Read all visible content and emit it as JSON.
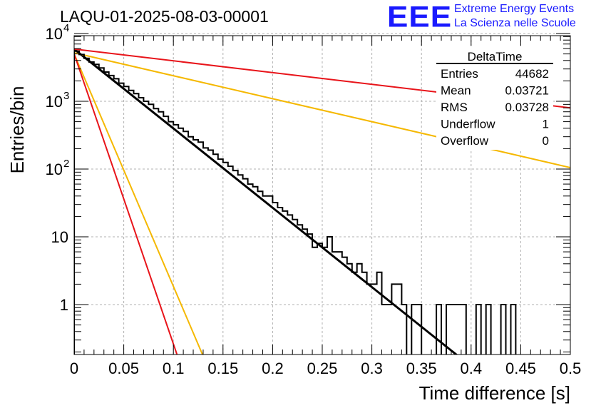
{
  "header": {
    "title": "LAQU-01-2025-08-03-00001",
    "logo_text": "EEE",
    "logo_line1": "Extreme Energy Events",
    "logo_line2": "La Scienza nelle Scuole"
  },
  "colors": {
    "histogram": "#000000",
    "fit": "#000000",
    "red_line": "#e8141a",
    "orange_line": "#f5b800",
    "logo": "#1a1aff",
    "grid": "#b0b0b0"
  },
  "chart_data": {
    "type": "line",
    "title": "LAQU-01-2025-08-03-00001",
    "xlabel": "Time difference [s]",
    "ylabel": "Entries/bin",
    "xlim": [
      0,
      0.5
    ],
    "ylim": [
      0.16,
      10000
    ],
    "yscale": "log",
    "grid": true,
    "x_ticks": [
      "0",
      "0.05",
      "0.1",
      "0.15",
      "0.2",
      "0.25",
      "0.3",
      "0.35",
      "0.4",
      "0.45",
      "0.5"
    ],
    "y_ticks": [
      {
        "value": 1,
        "label": "1"
      },
      {
        "value": 10,
        "label": "10"
      },
      {
        "value": 100,
        "label": "10",
        "exp": "2"
      },
      {
        "value": 1000,
        "label": "10",
        "exp": "3"
      },
      {
        "value": 10000,
        "label": "10",
        "exp": "4"
      }
    ],
    "stats_box": {
      "name": "DeltaTime",
      "rows": [
        {
          "label": "Entries",
          "value": "44682"
        },
        {
          "label": "Mean",
          "value": "0.03721"
        },
        {
          "label": "RMS",
          "value": "0.03728"
        },
        {
          "label": "Underflow",
          "value": "1"
        },
        {
          "label": "Overflow",
          "value": "0"
        }
      ],
      "position": "top-right"
    },
    "histogram": {
      "bin_width": 0.005,
      "values": [
        5500,
        4900,
        4300,
        3800,
        3500,
        3100,
        2700,
        2400,
        2150,
        1850,
        1650,
        1450,
        1300,
        1130,
        1000,
        900,
        780,
        700,
        600,
        500,
        450,
        400,
        360,
        300,
        270,
        250,
        205,
        190,
        165,
        140,
        125,
        110,
        95,
        82,
        72,
        60,
        55,
        47,
        40,
        40,
        32,
        27,
        24,
        21,
        18,
        15,
        13,
        11,
        7,
        8,
        7,
        10,
        6,
        6,
        5,
        4,
        3,
        4,
        3,
        2,
        2,
        3,
        1,
        1,
        2,
        2,
        1,
        0,
        1,
        1,
        0,
        0,
        0,
        1,
        0,
        1,
        1,
        1,
        1,
        0,
        0,
        1,
        0,
        1,
        0,
        0,
        1,
        0,
        1,
        0,
        0,
        0,
        0,
        0,
        0,
        0,
        0,
        0,
        0,
        0
      ]
    },
    "fits": [
      {
        "color": "black",
        "x": [
          0,
          0.39
        ],
        "y": [
          5900,
          0.16
        ]
      },
      {
        "color": "red",
        "x": [
          0,
          0.5
        ],
        "y": [
          5900,
          800
        ]
      },
      {
        "color": "orange",
        "x": [
          0,
          0.5
        ],
        "y": [
          5200,
          105
        ]
      },
      {
        "color": "orange",
        "x": [
          0,
          0.131
        ],
        "y": [
          5000,
          0.16
        ]
      },
      {
        "color": "red",
        "x": [
          0,
          0.105
        ],
        "y": [
          5000,
          0.16
        ]
      }
    ]
  }
}
